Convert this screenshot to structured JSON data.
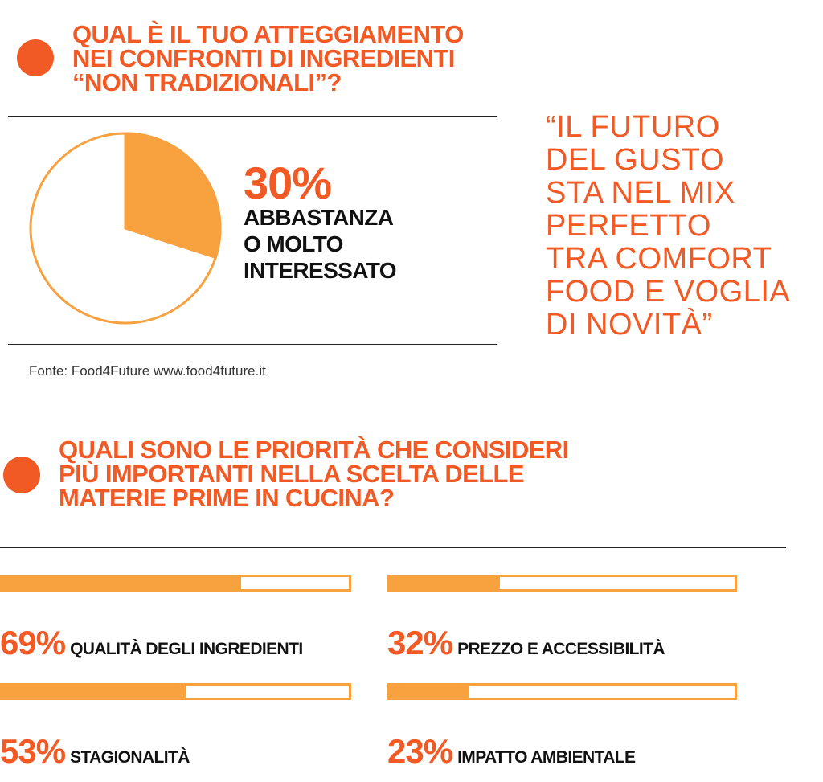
{
  "section1": {
    "title_lines": [
      "QUAL È IL TUO ATTEGGIAMENTO",
      "NEI CONFRONTI DI INGREDIENTI",
      "“NON TRADIZIONALI”?"
    ],
    "percent": "30%",
    "label_lines": [
      "ABBASTANZA",
      "O MOLTO",
      "INTERESSATO"
    ],
    "source": "Fonte: Food4Future www.food4future.it"
  },
  "quote": "“IL FUTURO\nDEL GUSTO\nSTA NEL MIX\nPERFETTO\nTRA COMFORT\nFOOD E VOGLIA\nDI NOVITÀ”",
  "section2": {
    "title_lines": [
      "QUALI SONO LE PRIORITÀ CHE CONSIDERI",
      "PIÙ IMPORTANTI NELLA SCELTA DELLE",
      "MATERIE PRIME IN CUCINA?"
    ]
  },
  "colors": {
    "accent": "#f15a24",
    "bar": "#f8a13f",
    "text": "#111111"
  },
  "chart_data": [
    {
      "type": "pie",
      "slices": [
        {
          "label": "ABBASTANZA O MOLTO INTERESSATO",
          "value": 30
        },
        {
          "label": "",
          "value": 70
        }
      ]
    },
    {
      "type": "bar",
      "categories": [
        "QUALITÀ DEGLI INGREDIENTI",
        "PREZZO E ACCESSIBILITÀ",
        "STAGIONALITÀ",
        "IMPATTO AMBIENTALE"
      ],
      "values": [
        69,
        32,
        53,
        23
      ],
      "value_labels": [
        "69%",
        "32%",
        "53%",
        "23%"
      ],
      "ylim": [
        0,
        100
      ]
    }
  ]
}
